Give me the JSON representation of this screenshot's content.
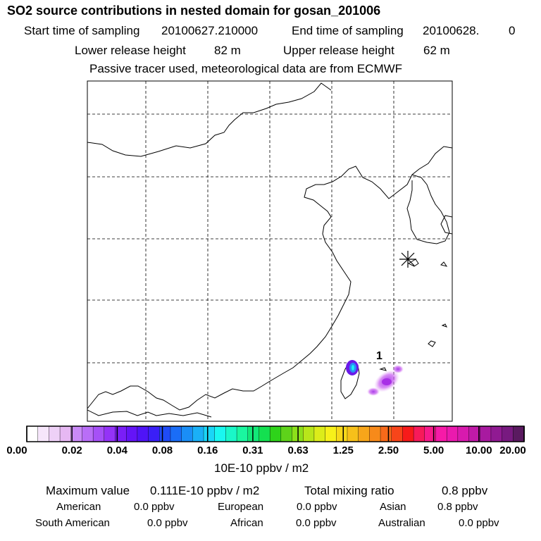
{
  "header": {
    "title": "SO2 source contributions in nested domain for gosan_201006",
    "start_label": "Start time of sampling",
    "start_value": "20100627.210000",
    "end_label": "End time of sampling",
    "end_value": "20100628.",
    "end_extra": "0",
    "lower_label": "Lower release height",
    "lower_value": "82 m",
    "upper_label": "Upper release height",
    "upper_value": "62 m",
    "note": "Passive tracer used, meteorological data are from ECMWF"
  },
  "map": {
    "site_marker": "gosan-station-marker",
    "plume_label": "1"
  },
  "colorbar": {
    "ticks": [
      "0.00",
      "0.02",
      "0.04",
      "0.08",
      "0.16",
      "0.31",
      "0.63",
      "1.25",
      "2.50",
      "5.00",
      "10.00",
      "20.00"
    ],
    "colors": [
      "#ffffff",
      "#f6e6fb",
      "#eed1f7",
      "#e6b8f3",
      "#c98af7",
      "#b96ef7",
      "#a650f7",
      "#9433f7",
      "#7a1ef7",
      "#6414f7",
      "#4f14f7",
      "#3a1ff7",
      "#1f4bf7",
      "#1a6df7",
      "#1a8ef7",
      "#1ab0f7",
      "#1ad6f7",
      "#1af7f0",
      "#1af7c8",
      "#1af7a0",
      "#12e878",
      "#14e050",
      "#2ed31a",
      "#5ed31a",
      "#8ce01a",
      "#b8e61a",
      "#dcec1a",
      "#f7f01a",
      "#f7d81a",
      "#f7c01a",
      "#f7a51a",
      "#f78a1a",
      "#f76a1a",
      "#f7451a",
      "#f71a1a",
      "#f71a5a",
      "#f71a8a",
      "#f71aa8",
      "#ea1aae",
      "#d81aae",
      "#c01aa8",
      "#a81aa0",
      "#901a92",
      "#781a80",
      "#5a1a60"
    ],
    "unit": "10E-10 ppbv / m2"
  },
  "summary": {
    "max_label": "Maximum value",
    "max_value": "0.111E-10 ppbv / m2",
    "total_label": "Total mixing ratio",
    "total_value": "0.8 ppbv",
    "regions": [
      {
        "name": "American",
        "value": "0.0 ppbv"
      },
      {
        "name": "European",
        "value": "0.0 ppbv"
      },
      {
        "name": "Asian",
        "value": "0.8 ppbv"
      },
      {
        "name": "South American",
        "value": "0.0 ppbv"
      },
      {
        "name": "African",
        "value": "0.0 ppbv"
      },
      {
        "name": "Australian",
        "value": "0.0 ppbv"
      }
    ]
  }
}
